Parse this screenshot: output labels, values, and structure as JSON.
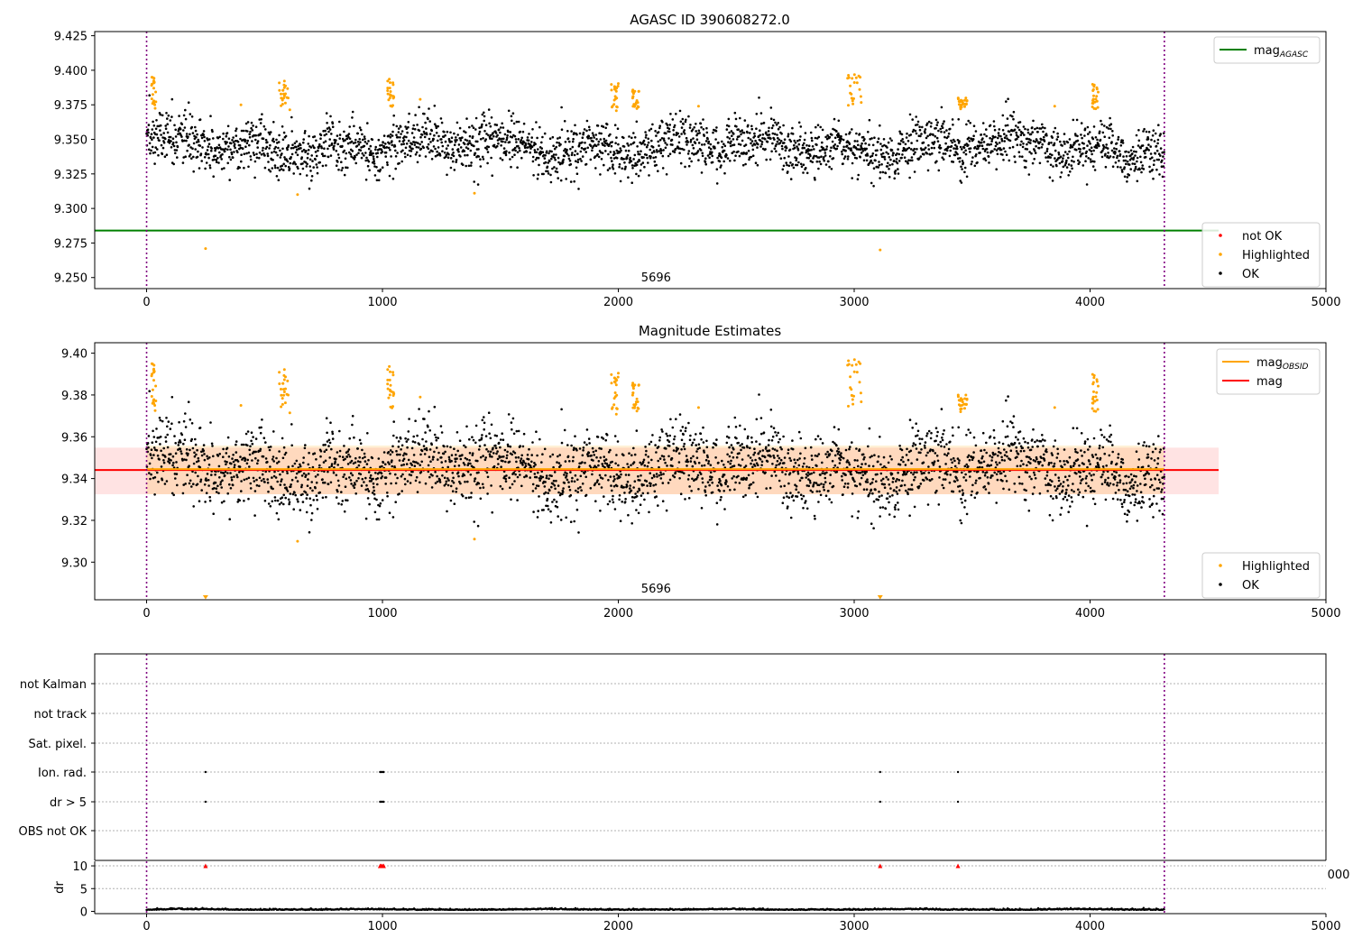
{
  "chart_data": [
    {
      "id": "agasc",
      "type": "scatter",
      "title": "AGASC ID 390608272.0",
      "xlim": [
        -220,
        5000
      ],
      "ylim": [
        9.242,
        9.428
      ],
      "xticks": [
        0,
        1000,
        2000,
        3000,
        4000,
        5000
      ],
      "yticks": [
        9.25,
        9.275,
        9.3,
        9.325,
        9.35,
        9.375,
        9.4,
        9.425
      ],
      "ytick_labels": [
        "9.250",
        "9.275",
        "9.300",
        "9.325",
        "9.350",
        "9.375",
        "9.400",
        "9.425"
      ],
      "vlines": [
        0,
        4315
      ],
      "hline": {
        "y": 9.284,
        "color": "#008000",
        "xrange": [
          -220,
          4545
        ]
      },
      "annotation": {
        "text": "5696",
        "x": 2160
      },
      "ok_cloud": {
        "x_start": 0,
        "x_end": 4315,
        "center": 9.345,
        "spread": 0.009
      },
      "highlight_clusters": [
        {
          "x": [
            20,
            40
          ],
          "y": [
            9.372,
            9.398
          ]
        },
        {
          "x": [
            560,
            610
          ],
          "y": [
            9.37,
            9.393
          ]
        },
        {
          "x": [
            1020,
            1050
          ],
          "y": [
            9.372,
            9.394
          ]
        },
        {
          "x": [
            1970,
            2000
          ],
          "y": [
            9.37,
            9.391
          ]
        },
        {
          "x": [
            2060,
            2090
          ],
          "y": [
            9.372,
            9.386
          ]
        },
        {
          "x": [
            2970,
            3030
          ],
          "y": [
            9.372,
            9.397
          ]
        },
        {
          "x": [
            3440,
            3480
          ],
          "y": [
            9.372,
            9.38
          ]
        },
        {
          "x": [
            4010,
            4035
          ],
          "y": [
            9.372,
            9.391
          ]
        }
      ],
      "highlight_points": [
        [
          250,
          9.271
        ],
        [
          3110,
          9.27
        ],
        [
          640,
          9.31
        ],
        [
          1390,
          9.311
        ],
        [
          400,
          9.375
        ],
        [
          1160,
          9.379
        ],
        [
          2340,
          9.374
        ],
        [
          3850,
          9.374
        ]
      ],
      "legends": [
        {
          "position": "upper-right",
          "items": [
            {
              "label": "mag",
              "sub": "AGASC",
              "color": "#008000",
              "kind": "line"
            }
          ]
        },
        {
          "position": "lower-right",
          "items": [
            {
              "label": "not OK",
              "color": "#ff0000",
              "kind": "dot"
            },
            {
              "label": "Highlighted",
              "color": "#ffa500",
              "kind": "dot"
            },
            {
              "label": "OK",
              "color": "#000000",
              "kind": "dot"
            }
          ]
        }
      ]
    },
    {
      "id": "estimates",
      "type": "scatter",
      "title": "Magnitude Estimates",
      "xlim": [
        -220,
        5000
      ],
      "ylim": [
        9.282,
        9.405
      ],
      "xticks": [
        0,
        1000,
        2000,
        3000,
        4000,
        5000
      ],
      "yticks": [
        9.3,
        9.32,
        9.34,
        9.36,
        9.38,
        9.4
      ],
      "ytick_labels": [
        "9.30",
        "9.32",
        "9.34",
        "9.36",
        "9.38",
        "9.40"
      ],
      "vlines": [
        0,
        4315
      ],
      "mag": {
        "y": 9.3441,
        "band": [
          9.3325,
          9.3548
        ],
        "xrange": [
          -220,
          4545
        ],
        "color": "#ff0000"
      },
      "mag_obsid": {
        "y": 9.3445,
        "band": [
          9.3325,
          9.3558
        ],
        "xrange": [
          0,
          4315
        ],
        "color": "#ffa500"
      },
      "annotation": {
        "text": "5696",
        "x": 2160
      },
      "offscale_markers": [
        250,
        3110
      ],
      "legends": [
        {
          "position": "upper-right",
          "items": [
            {
              "label": "mag",
              "sub": "OBSID",
              "color": "#ffa500",
              "kind": "line"
            },
            {
              "label": "mag",
              "sub": "",
              "color": "#ff0000",
              "kind": "line"
            }
          ]
        },
        {
          "position": "lower-right",
          "items": [
            {
              "label": "Highlighted",
              "color": "#ffa500",
              "kind": "dot"
            },
            {
              "label": "OK",
              "color": "#000000",
              "kind": "dot"
            }
          ]
        }
      ]
    },
    {
      "id": "flags",
      "type": "scatter",
      "xlim": [
        -220,
        5000
      ],
      "vlines": [
        0,
        4315
      ],
      "categories": [
        "not Kalman",
        "not track",
        "Sat. pixel.",
        "Ion. rad.",
        "dr > 5",
        "OBS not OK"
      ],
      "flag_points": {
        "Ion. rad.": [
          250,
          990,
          995,
          1000,
          1005,
          3110,
          3440
        ],
        "dr > 5": [
          250,
          990,
          995,
          1000,
          1005,
          3110,
          3440
        ]
      },
      "dr_inset": {
        "ylabel": "dr",
        "yticks": [
          0,
          5,
          10
        ],
        "ylim": [
          -0.5,
          11
        ],
        "xticks": [
          0,
          1000,
          2000,
          3000,
          4000,
          5000
        ],
        "clipped_tick_label": "000",
        "baseline_level": 0.3,
        "outliers": [
          250,
          990,
          995,
          1000,
          1005,
          3110,
          3440
        ],
        "outlier_level": 10
      }
    }
  ]
}
